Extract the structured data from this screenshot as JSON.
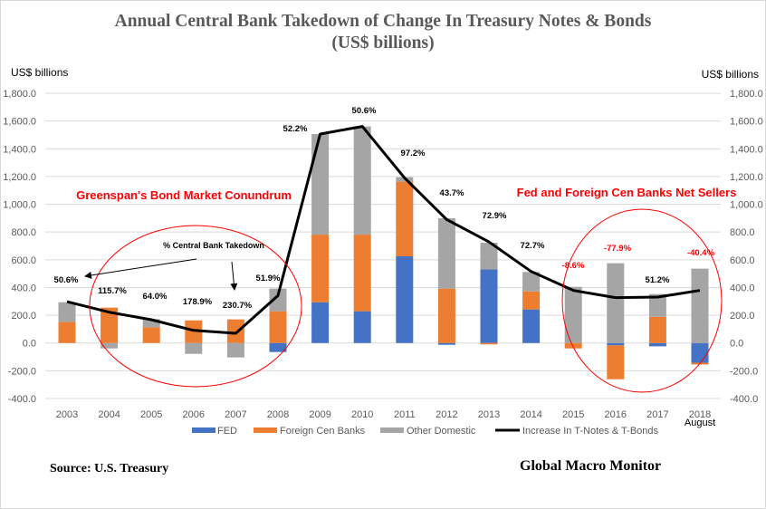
{
  "chart_data": {
    "type": "bar",
    "stacked": true,
    "title": "Annual Central Bank Takedown of Change In Treasury Notes & Bonds",
    "subtitle": "(US$ billions)",
    "ylabel_left": "US$ billions",
    "ylabel_right": "US$ billions",
    "ylim": [
      -400,
      1800
    ],
    "yticks": [
      "1,800.0",
      "1,600.0",
      "1,400.0",
      "1,200.0",
      "1,000.0",
      "800.0",
      "600.0",
      "400.0",
      "200.0",
      "0.0",
      "-200.0",
      "-400.0"
    ],
    "ytick_values": [
      1800,
      1600,
      1400,
      1200,
      1000,
      800,
      600,
      400,
      200,
      0,
      -200,
      -400
    ],
    "grid": true,
    "legend_position": "bottom",
    "categories": [
      "2003",
      "2004",
      "2005",
      "2006",
      "2007",
      "2008",
      "2009",
      "2010",
      "2011",
      "2012",
      "2013",
      "2014",
      "2015",
      "2016",
      "2017",
      "2018"
    ],
    "category_sublabels": {
      "2018": "August"
    },
    "series": [
      {
        "name": "FED",
        "type": "bar",
        "color": "#4472C4",
        "values": [
          0,
          0,
          0,
          0,
          0,
          -65,
          294,
          229,
          625,
          -13,
          531,
          242,
          0,
          -17,
          -24,
          -142
        ]
      },
      {
        "name": "Foreign Cen Banks",
        "type": "bar",
        "color": "#ED7D31",
        "values": [
          152,
          255,
          113,
          163,
          170,
          229,
          487,
          552,
          538,
          392,
          -10,
          130,
          -39,
          -244,
          189,
          -13
        ]
      },
      {
        "name": "Other Domestic",
        "type": "bar",
        "color": "#A5A5A5",
        "values": [
          142,
          -39,
          59,
          -78,
          -104,
          163,
          725,
          780,
          32,
          507,
          192,
          140,
          405,
          575,
          164,
          536
        ]
      },
      {
        "name": "Increase In T-Notes & T-Bonds",
        "type": "line",
        "color": "#000000",
        "values": [
          298,
          222,
          168,
          91,
          70,
          342,
          1506,
          1561,
          1190,
          890,
          729,
          516,
          379,
          327,
          331,
          379
        ]
      }
    ],
    "data_labels": [
      "50.6%",
      "115.7%",
      "64.0%",
      "178.9%",
      "230.7%",
      "51.9%",
      "52.2%",
      "50.6%",
      "97.2%",
      "43.7%",
      "72.9%",
      "72.7%",
      "-8.6%",
      "-77.9%",
      "51.2%",
      "-40.4%"
    ],
    "data_label_negative_color": "#FF0000",
    "annotations": {
      "left_callout": "Greenspan's Bond Market Conundrum",
      "right_callout": "Fed and Foreign Cen Banks Net Sellers",
      "takedown_note": "% Central Bank Takedown"
    }
  },
  "footer": {
    "source": "Source:  U.S. Treasury",
    "brand": "Global Macro Monitor"
  }
}
